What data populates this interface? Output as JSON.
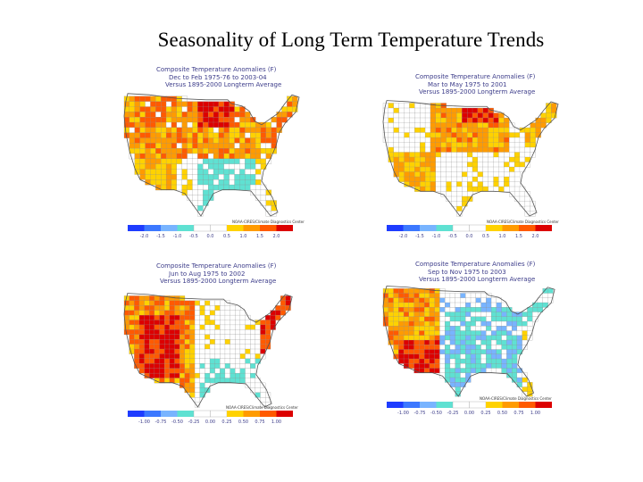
{
  "slide": {
    "title": "Seasonality of Long Term Temperature Trends"
  },
  "colors": {
    "dark_blue": "#1e3cff",
    "mid_blue": "#3c78ff",
    "light_blue": "#78b4ff",
    "cyan": "#5fe1d2",
    "white": "#ffffff",
    "yellow": "#ffd200",
    "orange": "#ff9b00",
    "orange_red": "#ff5a00",
    "red": "#dc0000",
    "border": "#909090",
    "title_color": "#3d3d8a"
  },
  "panels": [
    {
      "id": "winter",
      "title_lines": [
        "Composite Temperature Anomalies (F)",
        "Dec to Feb 1975-76 to 2003-04",
        "Versus 1895-2000 Longterm Average"
      ],
      "credit": "NOAA-CIRES/Climate Diagnostics Center",
      "legend_ticks": [
        "-2.0",
        "-1.5",
        "-1.0",
        "-0.5",
        "0.0",
        "0.5",
        "1.0",
        "1.5",
        "2.0"
      ]
    },
    {
      "id": "spring",
      "title_lines": [
        "Composite Temperature Anomalies (F)",
        "Mar to May 1975 to 2001",
        "Versus 1895-2000 Longterm Average"
      ],
      "credit": "NOAA-CIRES/Climate Diagnostics Center",
      "legend_ticks": [
        "-2.0",
        "-1.5",
        "-1.0",
        "-0.5",
        "0.0",
        "0.5",
        "1.0",
        "1.5",
        "2.0"
      ]
    },
    {
      "id": "summer",
      "title_lines": [
        "Composite Temperature Anomalies (F)",
        "Jun to Aug 1975 to 2002",
        "Versus 1895-2000 Longterm Average"
      ],
      "credit": "NOAA-CIRES/Climate Diagnostics Center",
      "legend_ticks": [
        "-1.00",
        "-0.75",
        "-0.50",
        "-0.25",
        "0.00",
        "0.25",
        "0.50",
        "0.75",
        "1.00"
      ]
    },
    {
      "id": "fall",
      "title_lines": [
        "Composite Temperature Anomalies (F)",
        "Sep to Nov 1975 to 2003",
        "Versus 1895-2000 Longterm Average"
      ],
      "credit": "NOAA-CIRES/Climate Diagnostics Center",
      "legend_ticks": [
        "-1.00",
        "-0.75",
        "-0.50",
        "-0.25",
        "0.00",
        "0.25",
        "0.50",
        "0.75",
        "1.00"
      ]
    }
  ]
}
